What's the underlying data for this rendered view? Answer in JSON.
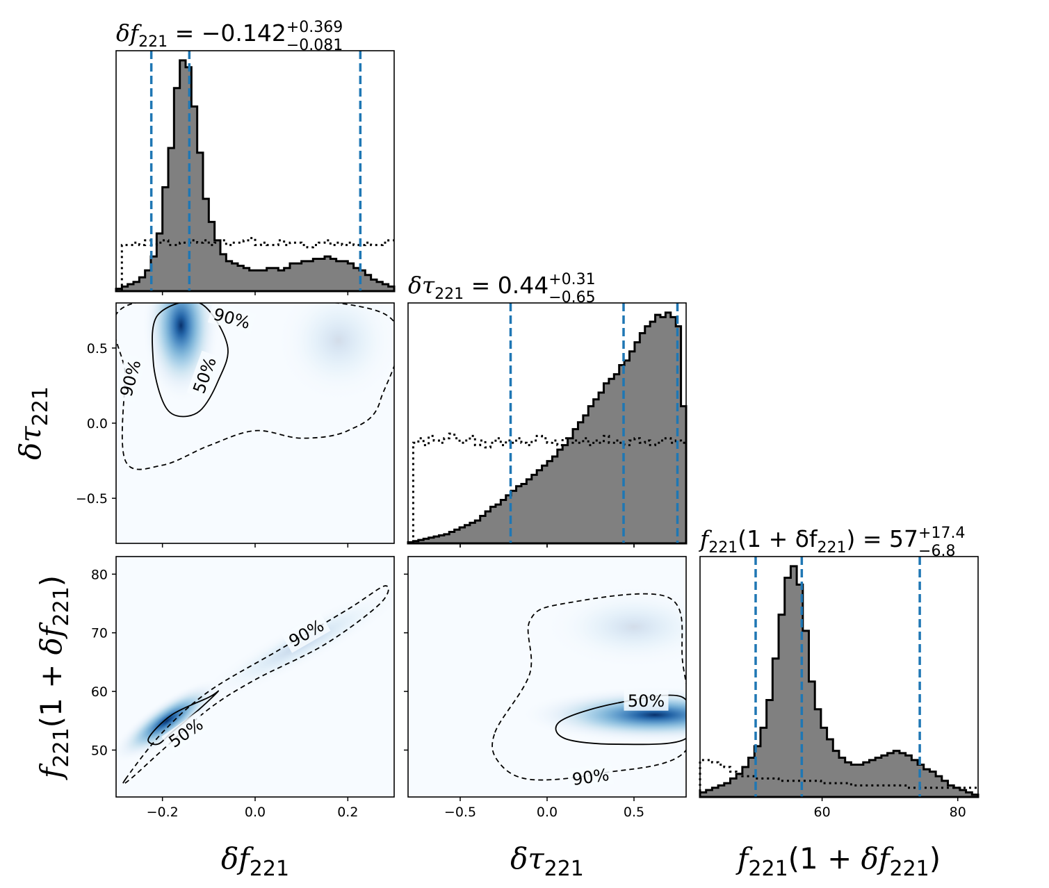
{
  "chart_data": [
    {
      "panel": "marginal-df",
      "type": "histogram",
      "title": {
        "lhs": "δf",
        "sub": "221",
        "median": "−0.142",
        "plus": "+0.369",
        "minus": "−0.081"
      },
      "xlim": [
        -0.3,
        0.3
      ],
      "quantiles": [
        -0.224,
        -0.142,
        0.227
      ],
      "posterior_bins": [
        0.01,
        0.02,
        0.03,
        0.04,
        0.06,
        0.09,
        0.15,
        0.25,
        0.45,
        0.62,
        0.88,
        1.0,
        0.97,
        0.8,
        0.6,
        0.4,
        0.3,
        0.22,
        0.16,
        0.13,
        0.12,
        0.11,
        0.1,
        0.09,
        0.09,
        0.09,
        0.1,
        0.1,
        0.09,
        0.1,
        0.12,
        0.12,
        0.13,
        0.13,
        0.14,
        0.14,
        0.15,
        0.14,
        0.13,
        0.13,
        0.12,
        0.1,
        0.09,
        0.07,
        0.05,
        0.04,
        0.03,
        0.02
      ],
      "prior_bins": [
        0.0,
        0.2,
        0.2,
        0.21,
        0.2,
        0.22,
        0.2,
        0.21,
        0.22,
        0.2,
        0.2,
        0.21,
        0.21,
        0.22,
        0.21,
        0.22,
        0.2,
        0.21,
        0.22,
        0.2,
        0.21,
        0.21,
        0.22,
        0.23,
        0.2,
        0.21,
        0.2,
        0.2,
        0.22,
        0.2,
        0.21,
        0.21,
        0.2,
        0.19,
        0.2,
        0.21,
        0.22,
        0.2,
        0.21,
        0.2,
        0.21,
        0.2,
        0.2,
        0.21,
        0.2,
        0.2,
        0.21,
        0.22
      ]
    },
    {
      "panel": "marginal-dtau",
      "type": "histogram",
      "title": {
        "lhs": "δτ",
        "sub": "221",
        "median": "0.44",
        "plus": "+0.31",
        "minus": "−0.65"
      },
      "xlim": [
        -0.8,
        0.8
      ],
      "xticks": [
        -0.5,
        0.0,
        0.5
      ],
      "quantiles": [
        -0.21,
        0.44,
        0.75
      ],
      "posterior_bins": [
        0.005,
        0.01,
        0.015,
        0.02,
        0.025,
        0.03,
        0.035,
        0.04,
        0.05,
        0.06,
        0.07,
        0.08,
        0.09,
        0.1,
        0.12,
        0.14,
        0.16,
        0.17,
        0.19,
        0.21,
        0.23,
        0.25,
        0.26,
        0.28,
        0.3,
        0.32,
        0.34,
        0.36,
        0.38,
        0.41,
        0.43,
        0.46,
        0.5,
        0.53,
        0.56,
        0.6,
        0.63,
        0.66,
        0.7,
        0.72,
        0.74,
        0.78,
        0.8,
        0.84,
        0.88,
        0.92,
        0.95,
        0.97,
        1.0,
        0.99,
        1.01,
        0.99,
        0.95,
        0.6
      ],
      "prior_bins": [
        0.0,
        0.44,
        0.46,
        0.43,
        0.47,
        0.45,
        0.44,
        0.46,
        0.48,
        0.46,
        0.44,
        0.45,
        0.47,
        0.43,
        0.45,
        0.42,
        0.44,
        0.46,
        0.43,
        0.45,
        0.44,
        0.46,
        0.44,
        0.43,
        0.45,
        0.47,
        0.46,
        0.44,
        0.45,
        0.43,
        0.46,
        0.44,
        0.45,
        0.44,
        0.46,
        0.43,
        0.45,
        0.44,
        0.47,
        0.44,
        0.45,
        0.44,
        0.43,
        0.45,
        0.46,
        0.44,
        0.45,
        0.43,
        0.44,
        0.45,
        0.46,
        0.44,
        0.45,
        0.44
      ]
    },
    {
      "panel": "marginal-f",
      "type": "histogram",
      "title": {
        "lhs": "f",
        "sub": "221",
        "mid": "(1 + δf",
        "sub2": "221",
        "close": ")",
        "median": "57",
        "plus": "+17.4",
        "minus": "−6.8"
      },
      "xlim": [
        42,
        83
      ],
      "xticks": [
        60,
        80
      ],
      "xlabel": "f221(1 + δf221)",
      "quantiles": [
        50.2,
        57.0,
        74.4
      ],
      "posterior_bins": [
        0.02,
        0.03,
        0.04,
        0.05,
        0.06,
        0.08,
        0.1,
        0.13,
        0.17,
        0.22,
        0.3,
        0.42,
        0.6,
        0.79,
        0.95,
        1.0,
        0.92,
        0.72,
        0.5,
        0.38,
        0.3,
        0.25,
        0.2,
        0.17,
        0.15,
        0.14,
        0.14,
        0.15,
        0.16,
        0.17,
        0.18,
        0.19,
        0.2,
        0.19,
        0.18,
        0.16,
        0.14,
        0.12,
        0.11,
        0.09,
        0.07,
        0.05,
        0.04,
        0.03,
        0.02,
        0.01
      ],
      "prior_bins": [
        0.16,
        0.16,
        0.15,
        0.14,
        0.13,
        0.11,
        0.1,
        0.09,
        0.09,
        0.08,
        0.08,
        0.08,
        0.08,
        0.07,
        0.07,
        0.07,
        0.07,
        0.07,
        0.07,
        0.07,
        0.06,
        0.06,
        0.06,
        0.06,
        0.06,
        0.05,
        0.05,
        0.05,
        0.05,
        0.05,
        0.05,
        0.05,
        0.05,
        0.05,
        0.04,
        0.04,
        0.04,
        0.04,
        0.04,
        0.04,
        0.04,
        0.04,
        0.04,
        0.04,
        0.04,
        0.04
      ]
    },
    {
      "panel": "joint-df-dtau",
      "type": "heatmap",
      "xlim": [
        -0.3,
        0.3
      ],
      "ylim": [
        -0.8,
        0.8
      ],
      "yticks": [
        -0.5,
        0.0,
        0.5
      ],
      "ylabel": "δτ221",
      "contours": [
        {
          "label": "50%",
          "points": [
            [
              -0.21,
              0.72
            ],
            [
              -0.12,
              0.8
            ],
            [
              -0.06,
              0.52
            ],
            [
              -0.08,
              0.28
            ],
            [
              -0.12,
              0.08
            ],
            [
              -0.17,
              0.05
            ],
            [
              -0.2,
              0.15
            ],
            [
              -0.22,
              0.42
            ]
          ]
        },
        {
          "label": "90%",
          "points": [
            [
              -0.26,
              0.8
            ],
            [
              0.27,
              0.74
            ],
            [
              0.27,
              0.15
            ],
            [
              0.2,
              -0.05
            ],
            [
              0.1,
              -0.1
            ],
            [
              0.0,
              -0.05
            ],
            [
              -0.1,
              -0.15
            ],
            [
              -0.2,
              -0.28
            ],
            [
              -0.28,
              -0.25
            ],
            [
              -0.28,
              0.3
            ]
          ]
        }
      ],
      "peaks": [
        {
          "x": -0.16,
          "y": 0.65,
          "w": 1.0
        },
        {
          "x": 0.18,
          "y": 0.55,
          "w": 0.15
        }
      ]
    },
    {
      "panel": "joint-df-f",
      "type": "heatmap",
      "xlim": [
        -0.3,
        0.3
      ],
      "ylim": [
        42,
        83
      ],
      "xticks": [
        -0.2,
        0.0,
        0.2
      ],
      "yticks": [
        50,
        60,
        70,
        80
      ],
      "xlabel": "δf221",
      "ylabel": "f221(1 + δf221)",
      "contours": [
        {
          "label": "50%",
          "points": [
            [
              -0.23,
              52
            ],
            [
              -0.18,
              56
            ],
            [
              -0.1,
              59
            ],
            [
              -0.08,
              60
            ],
            [
              -0.12,
              57
            ],
            [
              -0.18,
              53
            ],
            [
              -0.21,
              51
            ]
          ]
        },
        {
          "label": "90%",
          "points": [
            [
              -0.28,
              45
            ],
            [
              -0.2,
              53
            ],
            [
              -0.1,
              60
            ],
            [
              0.05,
              67
            ],
            [
              0.2,
              74
            ],
            [
              0.28,
              78
            ],
            [
              0.27,
              75
            ],
            [
              0.15,
              68
            ],
            [
              0.0,
              62
            ],
            [
              -0.1,
              57
            ],
            [
              -0.2,
              50
            ],
            [
              -0.27,
              45
            ]
          ]
        }
      ],
      "peaks": [
        {
          "x": -0.19,
          "y": 55,
          "w": 1.0
        },
        {
          "x": 0.1,
          "y": 68,
          "w": 0.2
        }
      ]
    },
    {
      "panel": "joint-dtau-f",
      "type": "heatmap",
      "xlim": [
        -0.8,
        0.8
      ],
      "ylim": [
        42,
        83
      ],
      "contours": [
        {
          "label": "50%",
          "points": [
            [
              0.08,
              55
            ],
            [
              0.4,
              58
            ],
            [
              0.78,
              59
            ],
            [
              0.8,
              52
            ],
            [
              0.4,
              51
            ],
            [
              0.1,
              52
            ]
          ]
        },
        {
          "label": "90%",
          "points": [
            [
              -0.3,
              53
            ],
            [
              -0.1,
              63
            ],
            [
              -0.1,
              72
            ],
            [
              0.1,
              75
            ],
            [
              0.7,
              76
            ],
            [
              0.78,
              65
            ],
            [
              0.8,
              50
            ],
            [
              0.3,
              46
            ],
            [
              -0.1,
              45
            ],
            [
              -0.28,
              48
            ]
          ]
        }
      ],
      "peaks": [
        {
          "x": 0.62,
          "y": 56,
          "w": 1.0
        },
        {
          "x": 0.5,
          "y": 71,
          "w": 0.15
        }
      ]
    }
  ]
}
